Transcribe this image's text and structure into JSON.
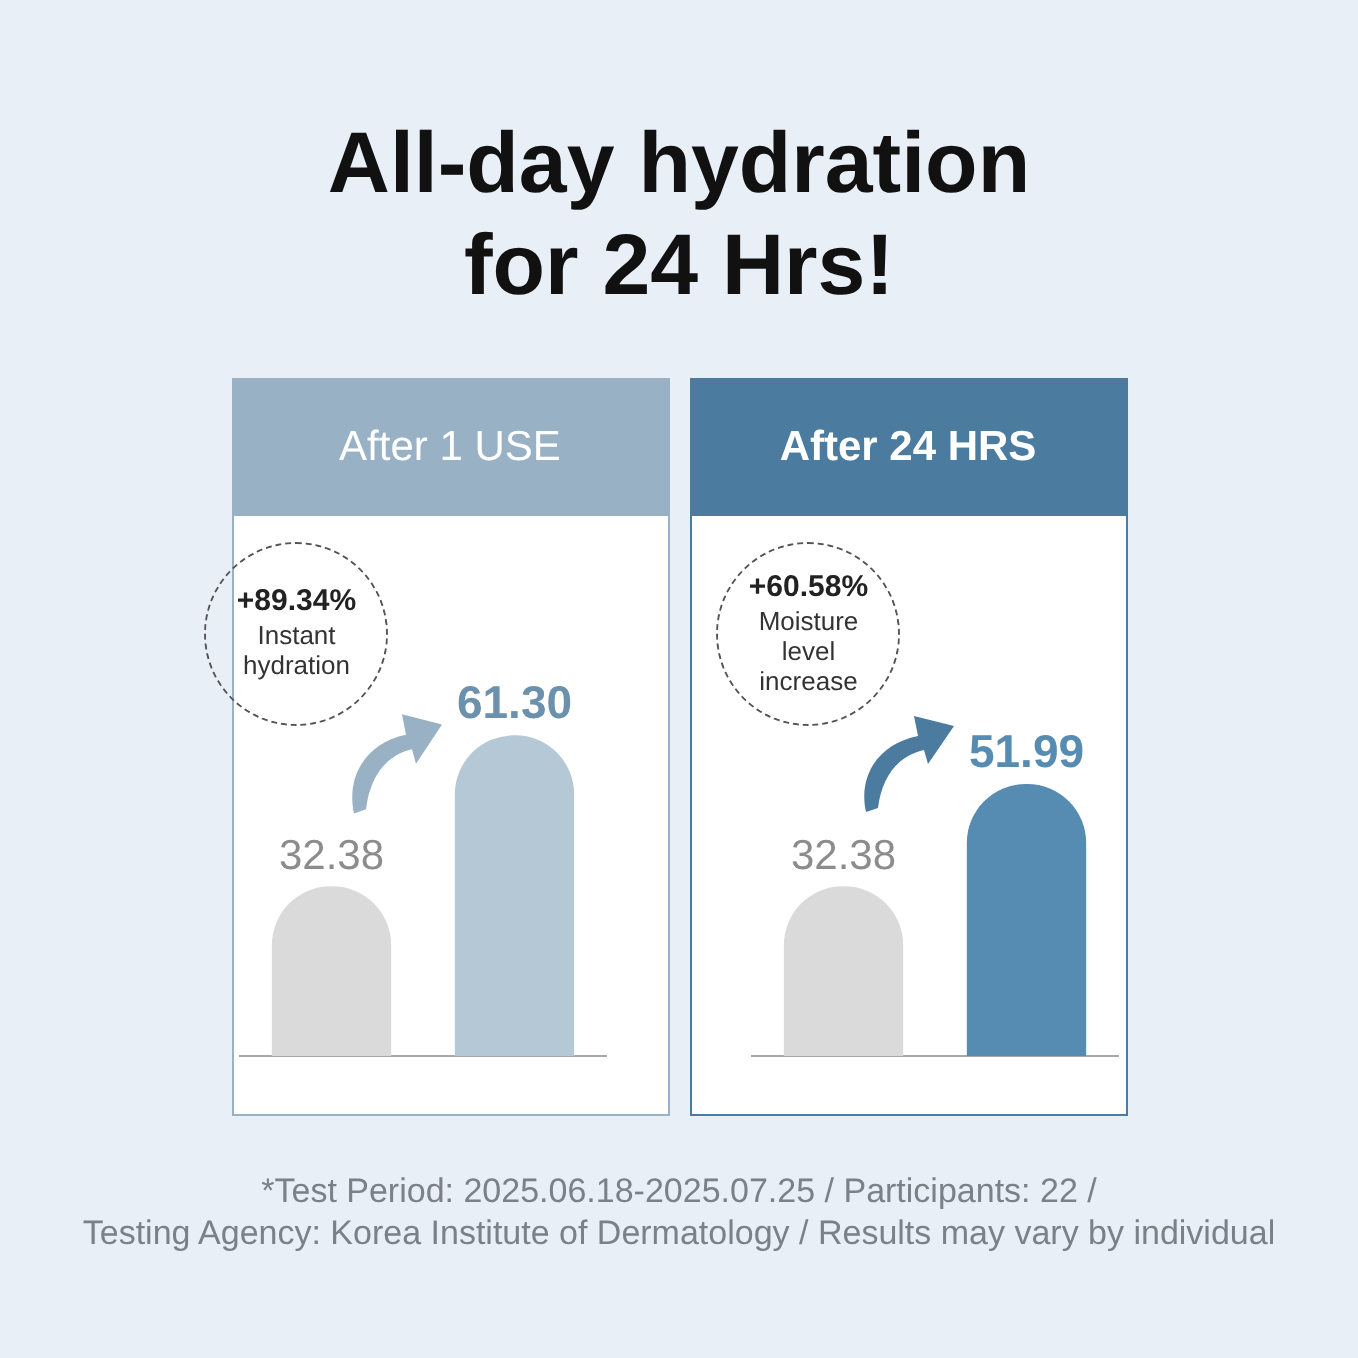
{
  "chart_data": [
    {
      "type": "bar",
      "title": "All-day hydration for 24 Hrs!",
      "subtitle": "After 1 USE",
      "categories": [
        null,
        null
      ],
      "values": [
        32.38,
        61.3
      ],
      "value_labels": [
        "32.38",
        "61.30"
      ],
      "colors": [
        "#dadada",
        "#b5c8d6"
      ],
      "annotations": [
        "+89.34%",
        "Instant hydration"
      ]
    },
    {
      "type": "bar",
      "subtitle": "After 24 HRS",
      "categories": [
        null,
        null
      ],
      "values": [
        32.38,
        51.99
      ],
      "value_labels": [
        "32.38",
        "51.99"
      ],
      "colors": [
        "#dadada",
        "#568bb2"
      ],
      "annotations": [
        "+60.58%",
        "Moisture level increase",
        "*Test Period: 2025.06.18-2025.07.25 / Participants: 22 /",
        "Testing Agency: Korea Institute of Dermatology / Results may vary by individual"
      ]
    }
  ]
}
